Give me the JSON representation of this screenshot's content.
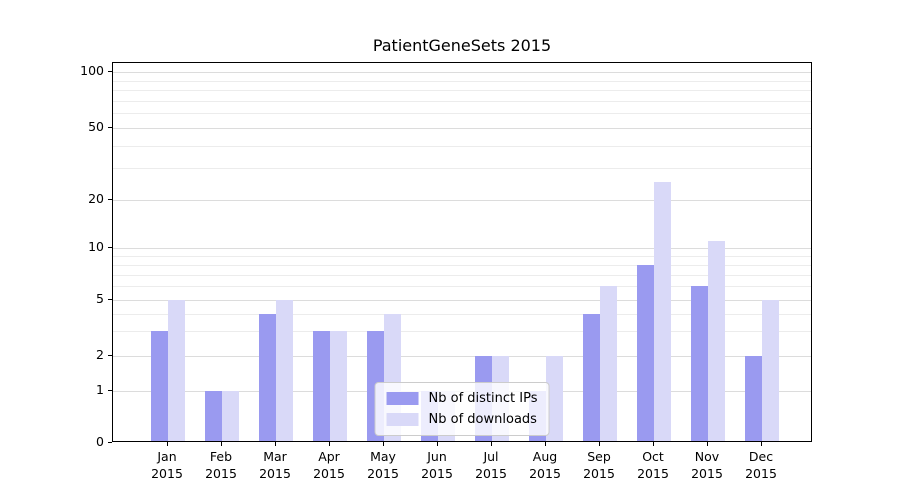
{
  "chart_data": {
    "type": "bar",
    "title": "PatientGeneSets 2015",
    "categories": [
      "Jan 2015",
      "Feb 2015",
      "Mar 2015",
      "Apr 2015",
      "May 2015",
      "Jun 2015",
      "Jul 2015",
      "Aug 2015",
      "Sep 2015",
      "Oct 2015",
      "Nov 2015",
      "Dec 2015"
    ],
    "series": [
      {
        "name": "Nb of distinct IPs",
        "color": "#9a9af0",
        "values": [
          3,
          1,
          4,
          3,
          3,
          1,
          2,
          1,
          4,
          8,
          6,
          2
        ]
      },
      {
        "name": "Nb of downloads",
        "color": "#d9d9f8",
        "values": [
          5,
          1,
          5,
          3,
          4,
          1,
          2,
          2,
          6,
          25,
          11,
          5
        ]
      }
    ],
    "y_ticks": [
      0,
      1,
      2,
      5,
      10,
      20,
      50,
      100
    ],
    "y_scale": "symlog",
    "ylim": [
      0,
      112
    ],
    "grid": "horizontal-log-minor",
    "legend_position": "lower center"
  }
}
